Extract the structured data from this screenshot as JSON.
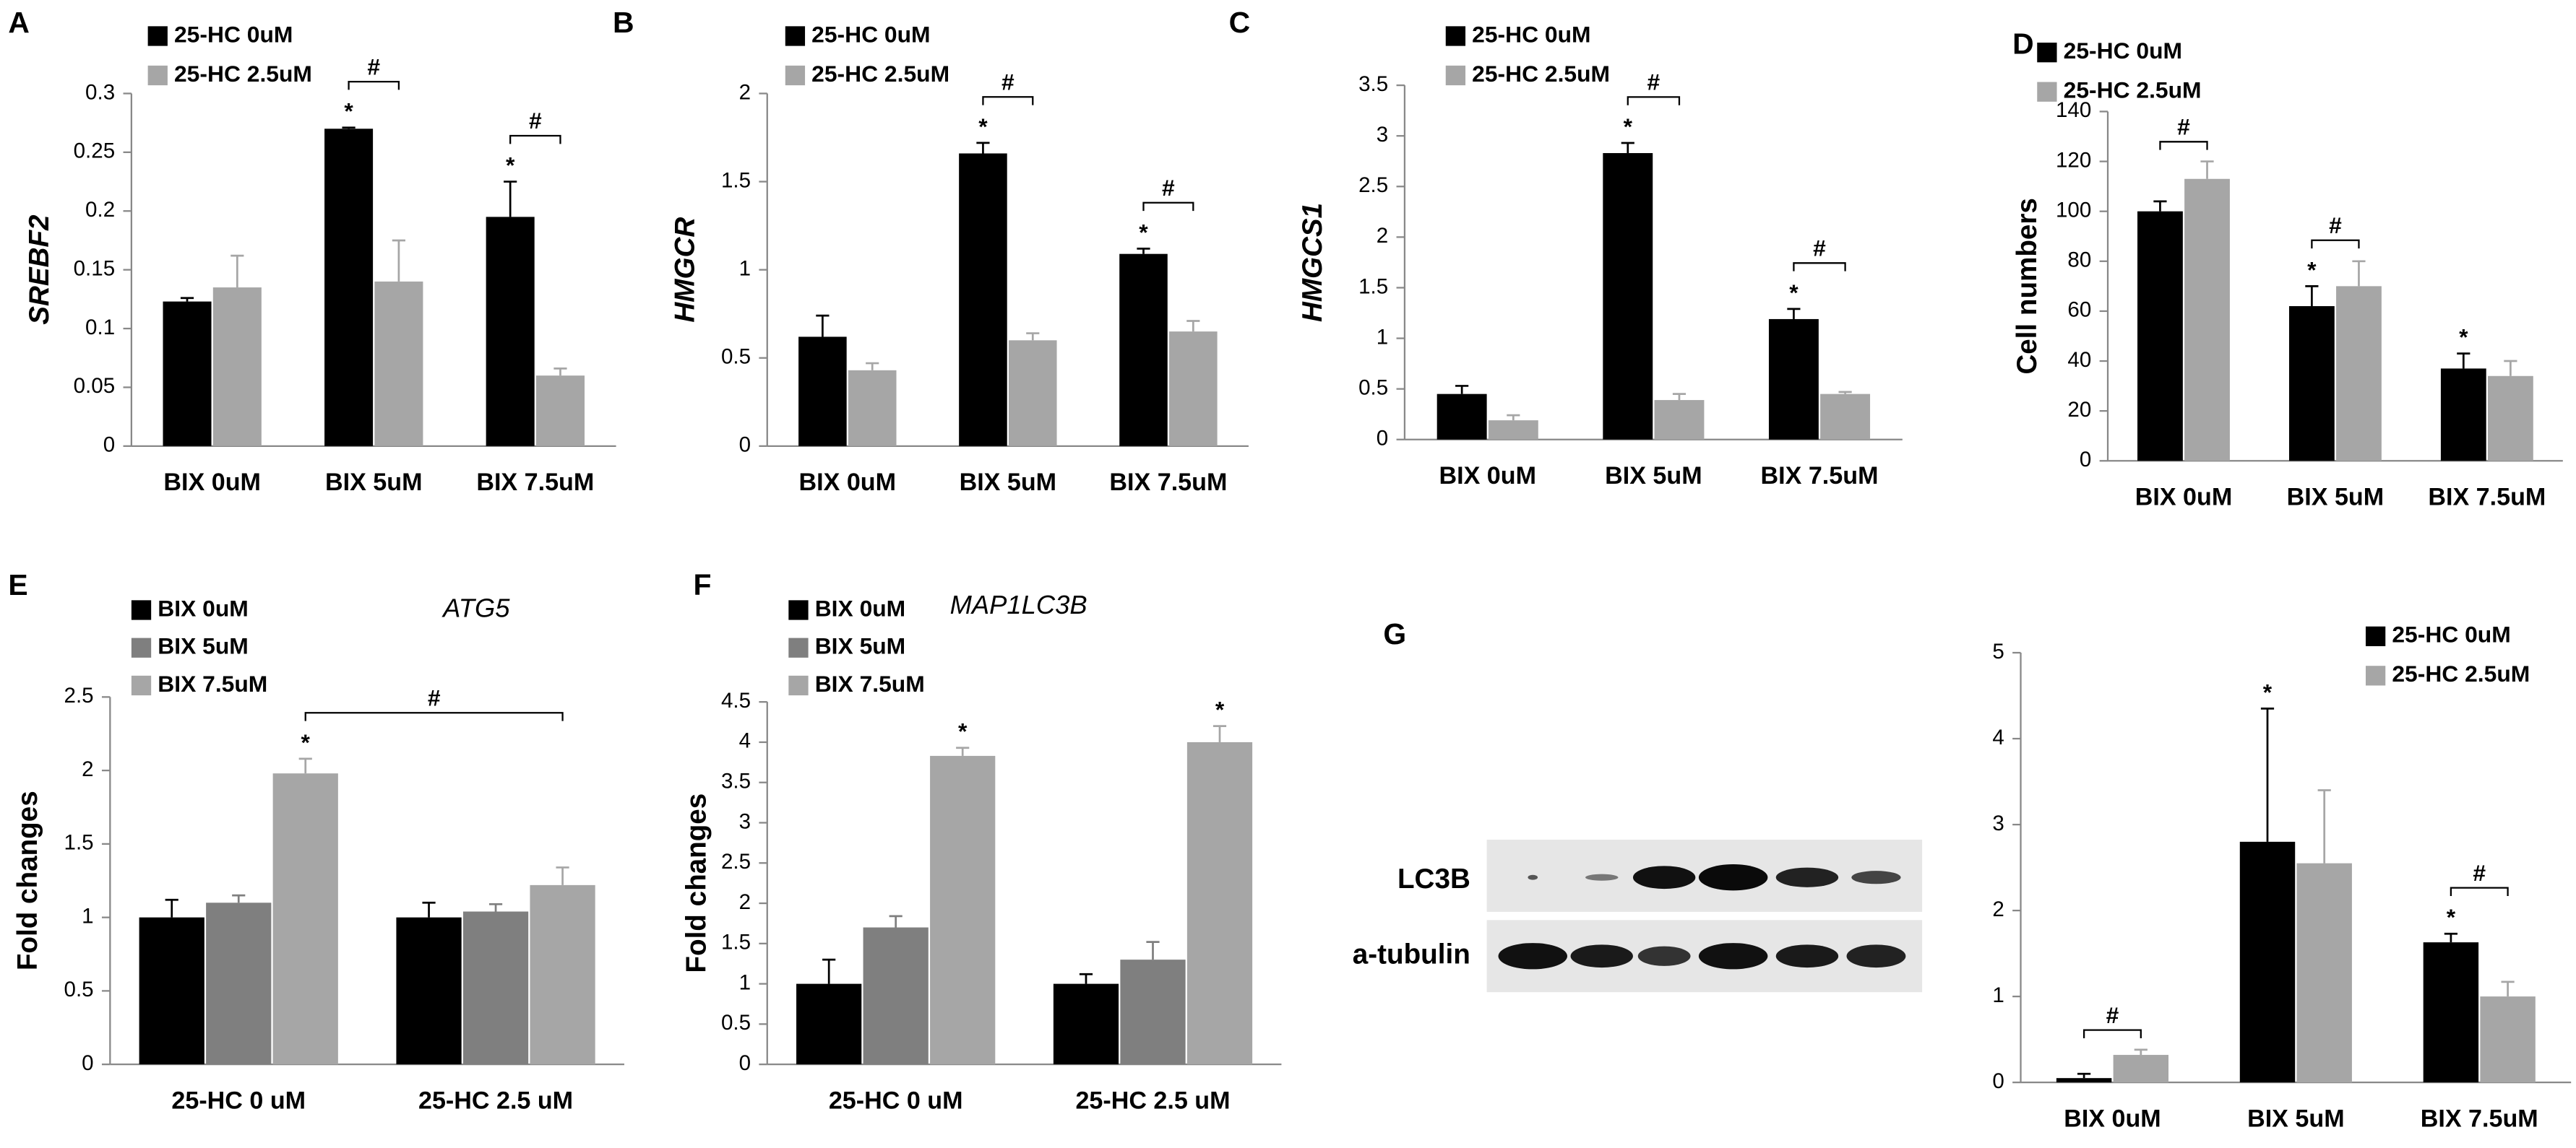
{
  "chart_data": [
    {
      "type": "bar",
      "panel": "A",
      "ylabel": "SREBF2",
      "ylabel_italic": true,
      "legend": "upper left",
      "categories": [
        "BIX 0uM",
        "BIX 5uM",
        "BIX 7.5uM"
      ],
      "series": [
        {
          "name": "25-HC 0uM",
          "color": "#000000",
          "values": [
            0.123,
            0.27,
            0.195
          ],
          "errors": [
            0.003,
            0.001,
            0.03
          ],
          "stars": [
            null,
            "*",
            "*"
          ]
        },
        {
          "name": "25-HC 2.5uM",
          "color": "#a6a6a6",
          "values": [
            0.135,
            0.14,
            0.06
          ],
          "errors": [
            0.027,
            0.035,
            0.006
          ],
          "stars": [
            null,
            null,
            null
          ]
        }
      ],
      "brackets": [
        {
          "label": "#",
          "from": [
            0,
            1
          ],
          "to": [
            1,
            1
          ]
        },
        {
          "label": "#",
          "from": [
            0,
            2
          ],
          "to": [
            1,
            2
          ]
        }
      ],
      "ylim": [
        0,
        0.3
      ],
      "yticks": [
        0,
        0.05,
        0.1,
        0.15,
        0.2,
        0.25,
        0.3
      ]
    },
    {
      "type": "bar",
      "panel": "B",
      "ylabel": "HMGCR",
      "ylabel_italic": true,
      "legend": "upper left",
      "categories": [
        "BIX 0uM",
        "BIX 5uM",
        "BIX 7.5uM"
      ],
      "series": [
        {
          "name": "25-HC 0uM",
          "color": "#000000",
          "values": [
            0.62,
            1.66,
            1.09
          ],
          "errors": [
            0.12,
            0.06,
            0.03
          ],
          "stars": [
            null,
            "*",
            "*"
          ]
        },
        {
          "name": "25-HC 2.5uM",
          "color": "#a6a6a6",
          "values": [
            0.43,
            0.6,
            0.65
          ],
          "errors": [
            0.04,
            0.04,
            0.06
          ],
          "stars": [
            null,
            null,
            null
          ]
        }
      ],
      "brackets": [
        {
          "label": "#",
          "from": [
            0,
            1
          ],
          "to": [
            1,
            1
          ]
        },
        {
          "label": "#",
          "from": [
            0,
            2
          ],
          "to": [
            1,
            2
          ]
        }
      ],
      "ylim": [
        0,
        2
      ],
      "yticks": [
        0,
        0.5,
        1,
        1.5,
        2
      ]
    },
    {
      "type": "bar",
      "panel": "C",
      "ylabel": "HMGCS1",
      "ylabel_italic": true,
      "legend": "upper left",
      "categories": [
        "BIX 0uM",
        "BIX 5uM",
        "BIX 7.5uM"
      ],
      "series": [
        {
          "name": "25-HC 0uM",
          "color": "#000000",
          "values": [
            0.45,
            2.83,
            1.19
          ],
          "errors": [
            0.08,
            0.1,
            0.1
          ],
          "stars": [
            null,
            "*",
            "*"
          ]
        },
        {
          "name": "25-HC 2.5uM",
          "color": "#a6a6a6",
          "values": [
            0.19,
            0.39,
            0.45
          ],
          "errors": [
            0.05,
            0.06,
            0.02
          ],
          "stars": [
            null,
            null,
            null
          ]
        }
      ],
      "brackets": [
        {
          "label": "#",
          "from": [
            0,
            1
          ],
          "to": [
            1,
            1
          ]
        },
        {
          "label": "#",
          "from": [
            0,
            2
          ],
          "to": [
            1,
            2
          ]
        }
      ],
      "ylim": [
        0,
        3.5
      ],
      "yticks": [
        0,
        0.5,
        1,
        1.5,
        2,
        2.5,
        3,
        3.5
      ]
    },
    {
      "type": "bar",
      "panel": "D",
      "ylabel": "Cell numbers",
      "ylabel_italic": false,
      "legend": "upper left",
      "categories": [
        "BIX 0uM",
        "BIX 5uM",
        "BIX 7.5uM"
      ],
      "series": [
        {
          "name": "25-HC 0uM",
          "color": "#000000",
          "values": [
            100,
            62,
            37
          ],
          "errors": [
            4,
            8,
            6
          ],
          "stars": [
            null,
            "*",
            "*"
          ]
        },
        {
          "name": "25-HC 2.5uM",
          "color": "#a6a6a6",
          "values": [
            113,
            70,
            34
          ],
          "errors": [
            7,
            10,
            6
          ],
          "stars": [
            null,
            null,
            null
          ]
        }
      ],
      "brackets": [
        {
          "label": "#",
          "from": [
            0,
            0
          ],
          "to": [
            1,
            0
          ]
        },
        {
          "label": "#",
          "from": [
            0,
            1
          ],
          "to": [
            1,
            1
          ]
        }
      ],
      "ylim": [
        0,
        140
      ],
      "yticks": [
        0,
        20,
        40,
        60,
        80,
        100,
        120,
        140
      ]
    },
    {
      "type": "bar",
      "panel": "E",
      "title": "ATG5",
      "ylabel": "Fold changes",
      "ylabel_italic": false,
      "legend": "upper left",
      "categories": [
        "25-HC 0 uM",
        "25-HC 2.5 uM"
      ],
      "series": [
        {
          "name": "BIX 0uM",
          "color": "#000000",
          "values": [
            1.0,
            1.0
          ],
          "errors": [
            0.12,
            0.1
          ],
          "stars": [
            null,
            null
          ]
        },
        {
          "name": "BIX 5uM",
          "color": "#7f7f7f",
          "values": [
            1.1,
            1.04
          ],
          "errors": [
            0.05,
            0.05
          ],
          "stars": [
            null,
            null
          ]
        },
        {
          "name": "BIX 7.5uM",
          "color": "#a6a6a6",
          "values": [
            1.98,
            1.22
          ],
          "errors": [
            0.1,
            0.12
          ],
          "stars": [
            "*",
            null
          ]
        }
      ],
      "brackets": [
        {
          "label": "#",
          "from": [
            2,
            0
          ],
          "to": [
            2,
            1
          ]
        }
      ],
      "ylim": [
        0,
        2.5
      ],
      "yticks": [
        0,
        0.5,
        1,
        1.5,
        2,
        2.5
      ]
    },
    {
      "type": "bar",
      "panel": "F",
      "title": "MAP1LC3B",
      "ylabel": "Fold changes",
      "ylabel_italic": false,
      "legend": "upper left",
      "categories": [
        "25-HC 0 uM",
        "25-HC 2.5 uM"
      ],
      "series": [
        {
          "name": "BIX 0uM",
          "color": "#000000",
          "values": [
            1.0,
            1.0
          ],
          "errors": [
            0.3,
            0.12
          ],
          "stars": [
            null,
            null
          ]
        },
        {
          "name": "BIX 5uM",
          "color": "#7f7f7f",
          "values": [
            1.7,
            1.3
          ],
          "errors": [
            0.14,
            0.22
          ],
          "stars": [
            null,
            null
          ]
        },
        {
          "name": "BIX 7.5uM",
          "color": "#a6a6a6",
          "values": [
            3.83,
            4.0
          ],
          "errors": [
            0.1,
            0.2
          ],
          "stars": [
            "*",
            "*"
          ]
        }
      ],
      "brackets": [],
      "ylim": [
        0,
        4.5
      ],
      "yticks": [
        0,
        0.5,
        1,
        1.5,
        2,
        2.5,
        3,
        3.5,
        4,
        4.5
      ]
    },
    {
      "type": "bar",
      "panel": "G",
      "blot_labels": [
        "LC3B",
        "a-tubulin"
      ],
      "legend": "upper right",
      "categories": [
        "BIX 0uM",
        "BIX 5uM",
        "BIX 7.5uM"
      ],
      "series": [
        {
          "name": "25-HC 0uM",
          "color": "#000000",
          "values": [
            0.05,
            2.8,
            1.63
          ],
          "errors": [
            0.05,
            1.55,
            0.1
          ],
          "stars": [
            null,
            "*",
            "*"
          ]
        },
        {
          "name": "25-HC 2.5uM",
          "color": "#a6a6a6",
          "values": [
            0.32,
            2.55,
            1.0
          ],
          "errors": [
            0.06,
            0.85,
            0.17
          ],
          "stars": [
            null,
            null,
            null
          ]
        }
      ],
      "brackets": [
        {
          "label": "#",
          "from": [
            0,
            0
          ],
          "to": [
            1,
            0
          ]
        },
        {
          "label": "#",
          "from": [
            0,
            2
          ],
          "to": [
            1,
            2
          ]
        }
      ],
      "ylim": [
        0,
        5
      ],
      "yticks": [
        0,
        1,
        2,
        3,
        4,
        5
      ]
    }
  ]
}
